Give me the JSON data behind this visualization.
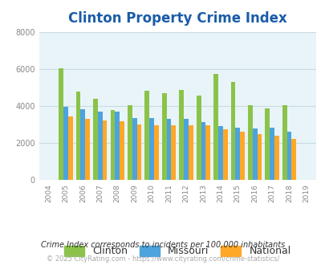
{
  "title": "Clinton Property Crime Index",
  "title_color": "#1a5ca8",
  "years": [
    "2004",
    "2005",
    "2006",
    "2007",
    "2008",
    "2009",
    "2010",
    "2011",
    "2012",
    "2013",
    "2014",
    "2015",
    "2016",
    "2017",
    "2018",
    "2019"
  ],
  "clinton": [
    0,
    6050,
    4800,
    4370,
    3780,
    4060,
    4820,
    4700,
    4870,
    4580,
    5720,
    5320,
    4060,
    3890,
    4050,
    0
  ],
  "missouri": [
    0,
    3950,
    3840,
    3680,
    3680,
    3370,
    3340,
    3300,
    3310,
    3140,
    2900,
    2840,
    2780,
    2830,
    2620,
    0
  ],
  "national": [
    0,
    3440,
    3320,
    3240,
    3180,
    3020,
    2970,
    2940,
    2940,
    2970,
    2730,
    2600,
    2490,
    2390,
    2220,
    0
  ],
  "clinton_color": "#8bc34a",
  "missouri_color": "#4ca3dd",
  "national_color": "#ffa726",
  "ylim": [
    0,
    8000
  ],
  "yticks": [
    0,
    2000,
    4000,
    6000,
    8000
  ],
  "background_color": "#e8f4f8",
  "figure_bg": "#ffffff",
  "grid_color": "#c8dce4",
  "bar_width": 0.27,
  "footnote1": "Crime Index corresponds to incidents per 100,000 inhabitants",
  "footnote2": "© 2025 CityRating.com - https://www.cityrating.com/crime-statistics/",
  "legend_labels": [
    "Clinton",
    "Missouri",
    "National"
  ]
}
